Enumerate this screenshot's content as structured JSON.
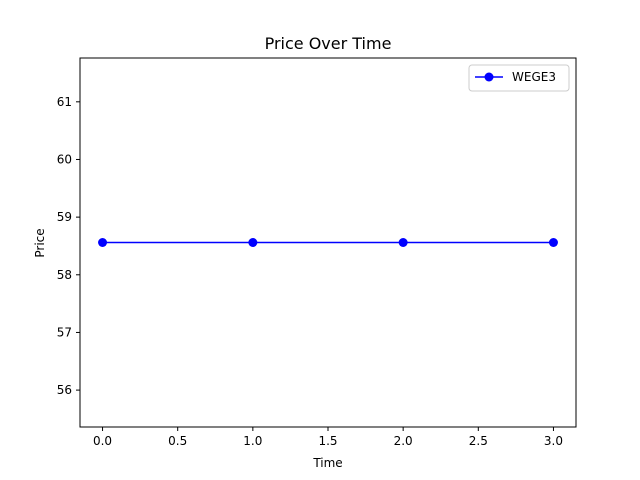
{
  "chart_data": {
    "type": "line",
    "title": "Price Over Time",
    "xlabel": "Time",
    "ylabel": "Price",
    "x": [
      0,
      1,
      2,
      3
    ],
    "series": [
      {
        "name": "WEGE3",
        "values": [
          58.56,
          58.56,
          58.56,
          58.56
        ],
        "color": "#0000ff",
        "marker": "circle"
      }
    ],
    "xlim": [
      -0.15,
      3.15
    ],
    "ylim": [
      55.36,
      61.76
    ],
    "xticks": [
      0.0,
      0.5,
      1.0,
      1.5,
      2.0,
      2.5,
      3.0
    ],
    "xtick_labels": [
      "0.0",
      "0.5",
      "1.0",
      "1.5",
      "2.0",
      "2.5",
      "3.0"
    ],
    "yticks": [
      56,
      57,
      58,
      59,
      60,
      61
    ],
    "ytick_labels": [
      "56",
      "57",
      "58",
      "59",
      "60",
      "61"
    ],
    "grid": false,
    "legend_position": "top-right"
  }
}
